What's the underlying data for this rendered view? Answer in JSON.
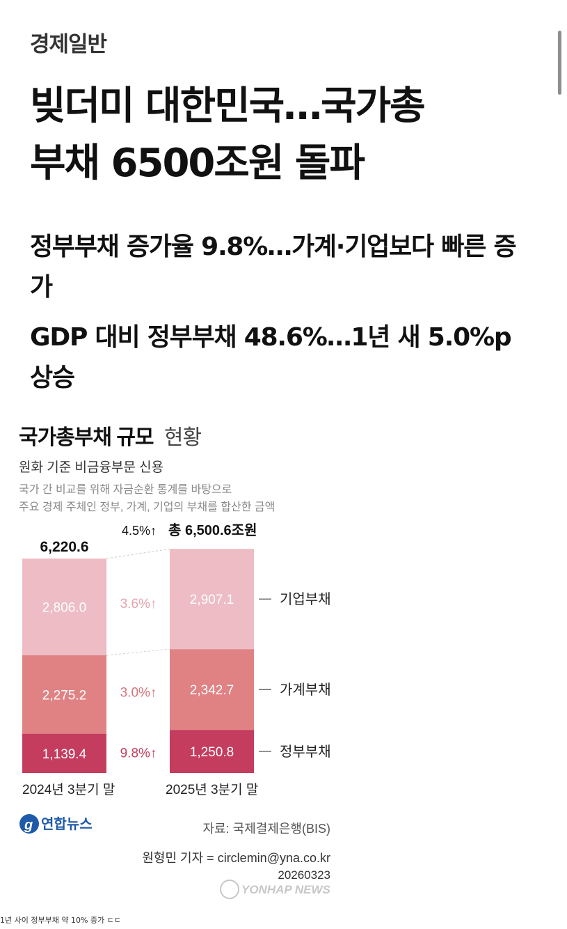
{
  "article": {
    "category": "경제일반",
    "headline_line1": "빚더미 대한민국…국가총",
    "headline_line2": "부채 6500조원 돌파",
    "subheads": [
      "정부부채 증가율 9.8%…가계·기업보다 빠른 증가",
      "GDP 대비 정부부채 48.6%…1년 새 5.0%p 상승"
    ]
  },
  "chart_data": {
    "type": "bar",
    "stacked": true,
    "title_bold": "국가총부채 규모",
    "title_light": "현황",
    "subtitle": "원화 기준 비금융부문 신용",
    "description": [
      "국가 간 비교를 위해 자금순환 통계를 바탕으로",
      "주요 경제 주체인 정부, 가계, 기업의 부채를 합산한 금액"
    ],
    "categories": [
      "2024년 3분기 말",
      "2025년 3분기 말"
    ],
    "totals": [
      "6,220.6",
      "총 6,500.6조원"
    ],
    "total_change": "4.5%↑",
    "series": [
      {
        "name": "정부부채",
        "values": [
          1139.4,
          1250.8
        ],
        "labels": [
          "1,139.4",
          "1,250.8"
        ],
        "change": "9.8%↑",
        "color": "#c43d5e",
        "label_color": "#ffffff",
        "change_color": "#c43d5e"
      },
      {
        "name": "가계부채",
        "values": [
          2275.2,
          2342.7
        ],
        "labels": [
          "2,275.2",
          "2,342.7"
        ],
        "change": "3.0%↑",
        "color": "#e08284",
        "label_color": "#ffffff",
        "change_color": "#d9737a"
      },
      {
        "name": "기업부채",
        "values": [
          2806.0,
          2907.1
        ],
        "labels": [
          "2,806.0",
          "2,907.1"
        ],
        "change": "3.6%↑",
        "color": "#edbcc4",
        "label_color": "#ffffff",
        "change_color": "#e6a3ae"
      }
    ],
    "source": "자료: 국제결제은행(BIS)",
    "logo_text": "연합뉴스",
    "reporter": "원형민 기자 = circlemin@yna.co.kr",
    "date_code": "20260323",
    "watermark": "YONHAP NEWS"
  },
  "footer_note": "1년 사이 정부부채 약 10% 증가 ㄷㄷ"
}
